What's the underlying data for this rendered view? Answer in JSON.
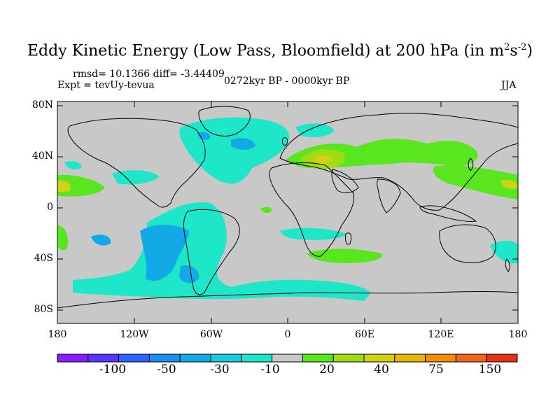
{
  "title": {
    "main": "Eddy Kinetic Energy (Low Pass, Bloomfield) at 200 hPa (in m",
    "sup1": "2",
    "mid": "s",
    "sup2": "-2",
    "end": ")"
  },
  "stats": "rmsd= 10.1366 diff= -3.44409",
  "experiment": "Expt = tevUy-tevua",
  "period": "0272kyr BP - 0000kyr BP",
  "season": "JJA",
  "lat_labels": [
    "80N",
    "40N",
    "0",
    "40S",
    "80S"
  ],
  "lon_labels": [
    "180",
    "120W",
    "60W",
    "0",
    "60E",
    "120E",
    "180"
  ],
  "colorbar": {
    "labels": [
      "-100",
      "-50",
      "-30",
      "-10",
      "20",
      "40",
      "75",
      "150"
    ],
    "colors": [
      "#8c1cff",
      "#5a35ff",
      "#2c64ff",
      "#1e8cf0",
      "#12aae6",
      "#1ec8dc",
      "#1ee6c8",
      "#c8c8c8",
      "#5ae61e",
      "#a0dc14",
      "#d2d214",
      "#e6b40a",
      "#f08c0a",
      "#f0641e",
      "#e63214"
    ]
  },
  "colors": {
    "ocean_background": "#c8c8c8",
    "coastline": "#000000"
  }
}
